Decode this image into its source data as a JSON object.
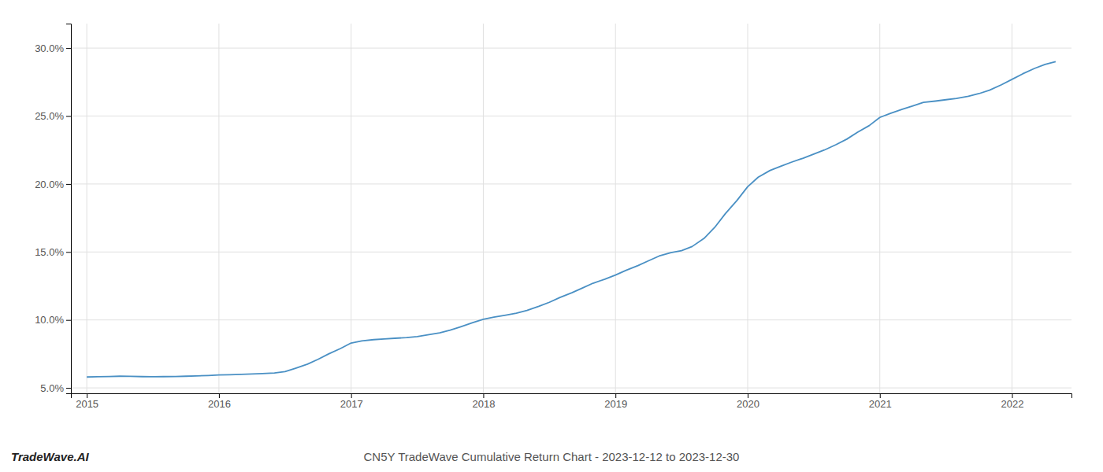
{
  "chart_data": {
    "type": "line",
    "color": "#4a90c4",
    "grid": true,
    "annotations": [
      "TradeWave.AI",
      "CN5Y TradeWave Cumulative Return Chart - 2023-12-12 to 2023-12-30"
    ],
    "x": [
      2015.0,
      2015.08,
      2015.17,
      2015.25,
      2015.33,
      2015.42,
      2015.5,
      2015.58,
      2015.67,
      2015.75,
      2015.83,
      2015.92,
      2016.0,
      2016.08,
      2016.17,
      2016.25,
      2016.33,
      2016.42,
      2016.5,
      2016.58,
      2016.67,
      2016.75,
      2016.83,
      2016.92,
      2017.0,
      2017.08,
      2017.17,
      2017.25,
      2017.33,
      2017.42,
      2017.5,
      2017.58,
      2017.67,
      2017.75,
      2017.83,
      2017.92,
      2018.0,
      2018.08,
      2018.17,
      2018.25,
      2018.33,
      2018.42,
      2018.5,
      2018.58,
      2018.67,
      2018.75,
      2018.83,
      2018.92,
      2019.0,
      2019.08,
      2019.17,
      2019.25,
      2019.33,
      2019.42,
      2019.5,
      2019.58,
      2019.67,
      2019.75,
      2019.83,
      2019.92,
      2020.0,
      2020.08,
      2020.17,
      2020.25,
      2020.33,
      2020.42,
      2020.5,
      2020.58,
      2020.67,
      2020.75,
      2020.83,
      2020.92,
      2021.0,
      2021.08,
      2021.17,
      2021.25,
      2021.33,
      2021.42,
      2021.5,
      2021.58,
      2021.67,
      2021.75,
      2021.83,
      2021.92,
      2022.0,
      2022.08,
      2022.17,
      2022.25,
      2022.33
    ],
    "values": [
      5.8,
      5.82,
      5.84,
      5.86,
      5.85,
      5.83,
      5.82,
      5.83,
      5.84,
      5.86,
      5.88,
      5.91,
      5.95,
      5.97,
      6.0,
      6.02,
      6.05,
      6.1,
      6.2,
      6.45,
      6.75,
      7.1,
      7.5,
      7.9,
      8.3,
      8.45,
      8.55,
      8.6,
      8.65,
      8.7,
      8.78,
      8.9,
      9.05,
      9.25,
      9.5,
      9.8,
      10.05,
      10.2,
      10.35,
      10.5,
      10.7,
      11.0,
      11.3,
      11.65,
      12.0,
      12.35,
      12.7,
      13.0,
      13.3,
      13.65,
      14.0,
      14.35,
      14.7,
      14.95,
      15.1,
      15.4,
      16.0,
      16.8,
      17.8,
      18.8,
      19.8,
      20.5,
      21.0,
      21.3,
      21.6,
      21.9,
      22.2,
      22.5,
      22.9,
      23.3,
      23.8,
      24.3,
      24.9,
      25.2,
      25.5,
      25.75,
      26.0,
      26.1,
      26.2,
      26.3,
      26.45,
      26.65,
      26.9,
      27.3,
      27.7,
      28.1,
      28.5,
      28.8,
      29.0
    ],
    "xlim": [
      2014.88,
      2022.45
    ],
    "ylim": [
      4.6,
      31.8
    ],
    "xticks": [
      2015,
      2016,
      2017,
      2018,
      2019,
      2020,
      2021,
      2022
    ],
    "yticks": [
      {
        "value": 5.0,
        "label": "5.0%"
      },
      {
        "value": 10.0,
        "label": "10.0%"
      },
      {
        "value": 15.0,
        "label": "15.0%"
      },
      {
        "value": 20.0,
        "label": "20.0%"
      },
      {
        "value": 25.0,
        "label": "25.0%"
      },
      {
        "value": 30.0,
        "label": "30.0%"
      }
    ]
  }
}
